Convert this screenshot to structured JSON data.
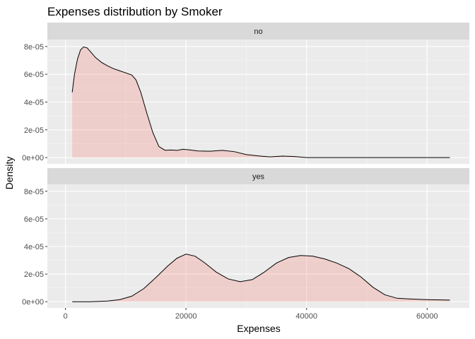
{
  "chart_data": {
    "type": "area",
    "title": "Expenses distribution by Smoker",
    "xlabel": "Expenses",
    "ylabel": "Density",
    "xlim": [
      -3000,
      67000
    ],
    "ylim": [
      -4.5e-06,
      8.5e-05
    ],
    "x_ticks": [
      {
        "value": 0,
        "label": "0"
      },
      {
        "value": 20000,
        "label": "20000"
      },
      {
        "value": 40000,
        "label": "40000"
      },
      {
        "value": 60000,
        "label": "60000"
      }
    ],
    "y_ticks": [
      {
        "value": 0,
        "label": "0e+00"
      },
      {
        "value": 2e-05,
        "label": "2e-05"
      },
      {
        "value": 4e-05,
        "label": "4e-05"
      },
      {
        "value": 6e-05,
        "label": "6e-05"
      },
      {
        "value": 8e-05,
        "label": "8e-05"
      }
    ],
    "grid": true,
    "fill_color": "#f8766d",
    "panels": [
      {
        "label": "no",
        "x": [
          1122,
          1500,
          2000,
          2500,
          3000,
          3600,
          4200,
          5000,
          6000,
          7000,
          8000,
          9000,
          10000,
          11000,
          11700,
          12500,
          13500,
          14500,
          15500,
          16500,
          17500,
          18500,
          19500,
          20500,
          22000,
          24000,
          26000,
          28000,
          30000,
          32000,
          34000,
          36000,
          38000,
          40000,
          45000,
          50000,
          55000,
          60000,
          63770
        ],
        "y": [
          4.7e-05,
          6e-05,
          7.1e-05,
          7.75e-05,
          7.97e-05,
          7.9e-05,
          7.6e-05,
          7.2e-05,
          6.85e-05,
          6.6e-05,
          6.4e-05,
          6.25e-05,
          6.1e-05,
          5.95e-05,
          5.6e-05,
          4.7e-05,
          3.2e-05,
          1.8e-05,
          8e-06,
          5.3e-06,
          5.5e-06,
          5.2e-06,
          6e-06,
          5.6e-06,
          4.8e-06,
          4.6e-06,
          5.2e-06,
          4.3e-06,
          2.2e-06,
          1.2e-06,
          5e-07,
          1.1e-06,
          8e-07,
          0,
          0,
          0,
          0,
          0,
          0
        ]
      },
      {
        "label": "yes",
        "x": [
          1122,
          4000,
          7000,
          9000,
          11000,
          13000,
          15000,
          17000,
          18500,
          20000,
          21500,
          23000,
          25000,
          27000,
          29000,
          31000,
          33000,
          35000,
          37000,
          39000,
          41000,
          43000,
          45000,
          47000,
          49000,
          51000,
          53000,
          55000,
          57000,
          60000,
          63770
        ],
        "y": [
          0,
          0,
          5e-07,
          1.5e-06,
          4e-06,
          9.5e-06,
          1.75e-05,
          2.6e-05,
          3.15e-05,
          3.45e-05,
          3.3e-05,
          2.85e-05,
          2.15e-05,
          1.65e-05,
          1.45e-05,
          1.6e-05,
          2.15e-05,
          2.8e-05,
          3.2e-05,
          3.35e-05,
          3.3e-05,
          3.1e-05,
          2.8e-05,
          2.4e-05,
          1.8e-05,
          1.05e-05,
          5e-06,
          2.5e-06,
          2e-06,
          1.5e-06,
          1.2e-06
        ]
      }
    ]
  }
}
